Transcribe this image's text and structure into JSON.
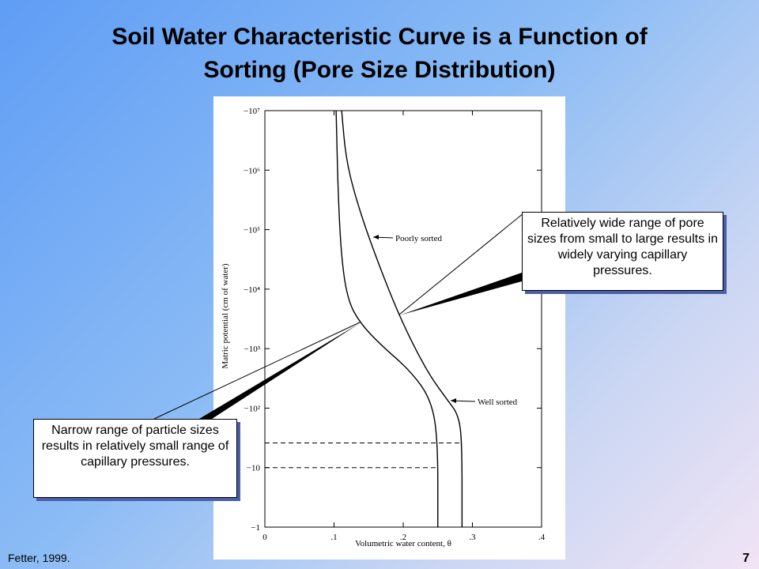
{
  "slide": {
    "title": [
      "Soil Water Characteristic Curve is a Function of",
      "Sorting (Pore Size Distribution)"
    ],
    "source": "Fetter, 1999.",
    "page_number": "7",
    "callouts": [
      "Relatively wide range of pore sizes from small to large results in widely varying capillary pressures.",
      "Narrow range of particle sizes results in relatively small range of capillary pressures."
    ]
  },
  "chart_data": {
    "type": "line",
    "x_label": "Volumetric water content, θ",
    "y_label": "Matric potential (cm of water)",
    "y_scale": "log",
    "xlim": [
      0,
      0.4
    ],
    "ylim": [
      -1,
      -10000000
    ],
    "xticks": [
      0,
      {
        "value": 0.1,
        "label": ".1"
      },
      {
        "value": 0.2,
        "label": ".2"
      },
      {
        "value": 0.3,
        "label": ".3"
      },
      {
        "value": 0.4,
        "label": ".4"
      }
    ],
    "yticks": [
      {
        "value": -1,
        "label": "−1"
      },
      {
        "value": -10,
        "label": "−10"
      },
      {
        "value": -100,
        "label": "−10²"
      },
      {
        "value": -1000,
        "label": "−10³"
      },
      {
        "value": -10000,
        "label": "−10⁴"
      },
      {
        "value": -100000,
        "label": "−10⁵"
      },
      {
        "value": -1000000,
        "label": "−10⁶"
      },
      {
        "value": -10000000,
        "label": "−10⁷"
      }
    ],
    "series": [
      {
        "name": "Poorly sorted",
        "color": "#000000",
        "x": [
          0.285,
          0.285,
          0.28,
          0.263,
          0.234,
          0.194,
          0.154,
          0.131,
          0.117,
          0.111
        ],
        "values": [
          -1,
          -26,
          -77,
          -141,
          -417,
          -3500,
          -55000,
          -350000,
          -1600000,
          -10000000
        ]
      },
      {
        "name": "Well sorted",
        "color": "#000000",
        "x": [
          0.25,
          0.25,
          0.24,
          0.211,
          0.166,
          0.137,
          0.12,
          0.111,
          0.106,
          0.103
        ],
        "values": [
          -1,
          -31,
          -141,
          -417,
          -1200,
          -2750,
          -6500,
          -30000,
          -350000,
          -10000000
        ]
      }
    ],
    "dashed_lines": [
      {
        "x": [
          0,
          0.285
        ],
        "y": -26
      },
      {
        "x": [
          0,
          0.25
        ],
        "y": -10
      }
    ]
  }
}
